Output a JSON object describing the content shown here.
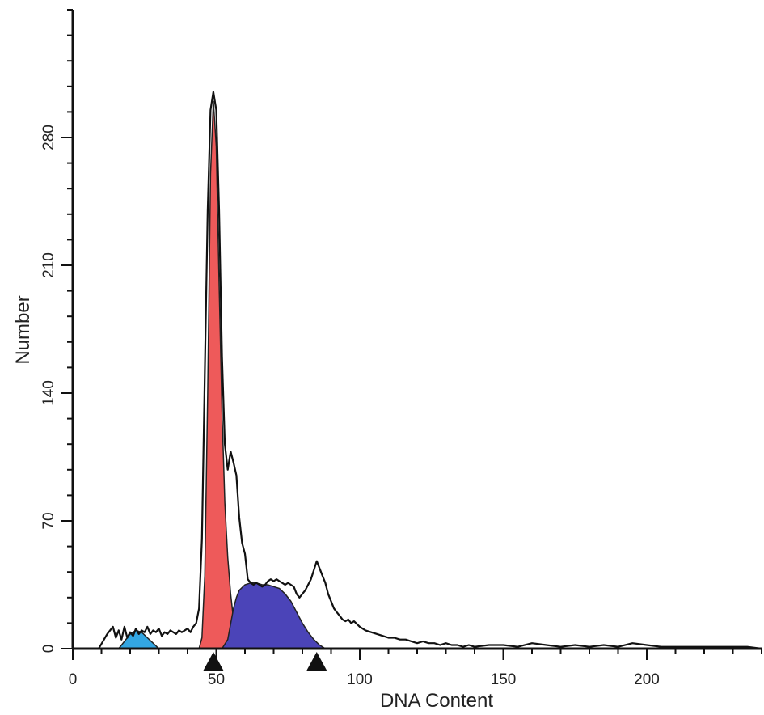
{
  "chart_data": {
    "type": "area",
    "xlabel": "DNA Content",
    "ylabel": "Number",
    "xlim": [
      0,
      240
    ],
    "ylim": [
      0,
      350
    ],
    "x_ticks": [
      0,
      50,
      100,
      150,
      200
    ],
    "y_ticks": [
      0,
      70,
      140,
      210,
      280
    ],
    "x_tick_labels": [
      "0",
      "50",
      "100",
      "150",
      "200"
    ],
    "y_tick_labels": [
      "0",
      "70",
      "140",
      "210",
      "280"
    ],
    "grid": false,
    "legend": "none",
    "markers": [
      {
        "x": 49,
        "color": "#111111"
      },
      {
        "x": 85,
        "color": "#111111"
      }
    ],
    "series": [
      {
        "kind": "outline",
        "color": "#111111",
        "x": [
          9,
          12,
          14,
          15,
          16,
          17,
          18,
          19,
          20,
          21,
          22,
          23,
          24,
          25,
          26,
          27,
          28,
          29,
          30,
          31,
          32,
          33,
          34,
          35,
          36,
          37,
          38,
          39,
          40,
          41,
          42,
          43,
          44,
          45,
          46,
          47,
          48,
          49,
          50,
          51,
          52,
          53,
          54,
          55,
          56,
          57,
          58,
          59,
          60,
          61,
          62,
          63,
          64,
          65,
          66,
          67,
          68,
          69,
          70,
          71,
          72,
          73,
          74,
          75,
          76,
          77,
          78,
          79,
          80,
          81,
          82,
          83,
          84,
          85,
          86,
          87,
          88,
          89,
          90,
          91,
          92,
          93,
          94,
          95,
          96,
          97,
          98,
          100,
          102,
          104,
          106,
          108,
          110,
          112,
          114,
          116,
          118,
          120,
          122,
          124,
          126,
          128,
          130,
          132,
          134,
          136,
          138,
          140,
          145,
          150,
          155,
          160,
          165,
          170,
          175,
          180,
          185,
          190,
          195,
          200,
          205,
          210,
          215,
          220,
          225,
          230,
          235,
          240
        ],
        "y": [
          0,
          8,
          12,
          6,
          10,
          5,
          12,
          6,
          9,
          7,
          11,
          8,
          10,
          9,
          12,
          8,
          10,
          9,
          11,
          7,
          9,
          8,
          10,
          9,
          8,
          10,
          9,
          10,
          11,
          9,
          12,
          14,
          22,
          60,
          150,
          240,
          295,
          305,
          295,
          240,
          160,
          112,
          98,
          108,
          102,
          95,
          72,
          58,
          52,
          38,
          36,
          35,
          36,
          35,
          34,
          35,
          37,
          38,
          37,
          38,
          37,
          36,
          35,
          36,
          35,
          34,
          30,
          28,
          30,
          32,
          35,
          38,
          43,
          48,
          44,
          40,
          36,
          30,
          26,
          22,
          20,
          18,
          16,
          15,
          16,
          14,
          15,
          12,
          10,
          9,
          8,
          7,
          6,
          6,
          5,
          5,
          4,
          3,
          4,
          3,
          3,
          2,
          3,
          2,
          2,
          1,
          2,
          1,
          2,
          2,
          1,
          3,
          2,
          1,
          2,
          1,
          2,
          1,
          3,
          2,
          1,
          1,
          1,
          1,
          1,
          1,
          1,
          0
        ]
      },
      {
        "kind": "fill",
        "color": "#ee5a5a",
        "x": [
          44,
          45,
          46,
          47,
          48,
          49,
          50,
          51,
          52,
          53,
          54,
          55,
          56,
          57,
          58,
          59
        ],
        "y": [
          0,
          6,
          40,
          140,
          260,
          300,
          275,
          200,
          130,
          80,
          50,
          30,
          16,
          8,
          3,
          0
        ]
      },
      {
        "kind": "fill",
        "color": "#4b44b8",
        "x": [
          52,
          54,
          56,
          57,
          58,
          60,
          62,
          64,
          66,
          68,
          70,
          72,
          74,
          76,
          78,
          80,
          82,
          84,
          86,
          88
        ],
        "y": [
          0,
          5,
          22,
          28,
          32,
          35,
          36,
          36,
          35,
          35,
          34,
          33,
          30,
          26,
          20,
          14,
          9,
          5,
          2,
          0
        ]
      },
      {
        "kind": "fill",
        "color": "#33a6e2",
        "x": [
          16,
          18,
          20,
          22,
          24,
          26,
          28,
          30
        ],
        "y": [
          0,
          4,
          8,
          10,
          9,
          6,
          3,
          0
        ]
      }
    ]
  }
}
